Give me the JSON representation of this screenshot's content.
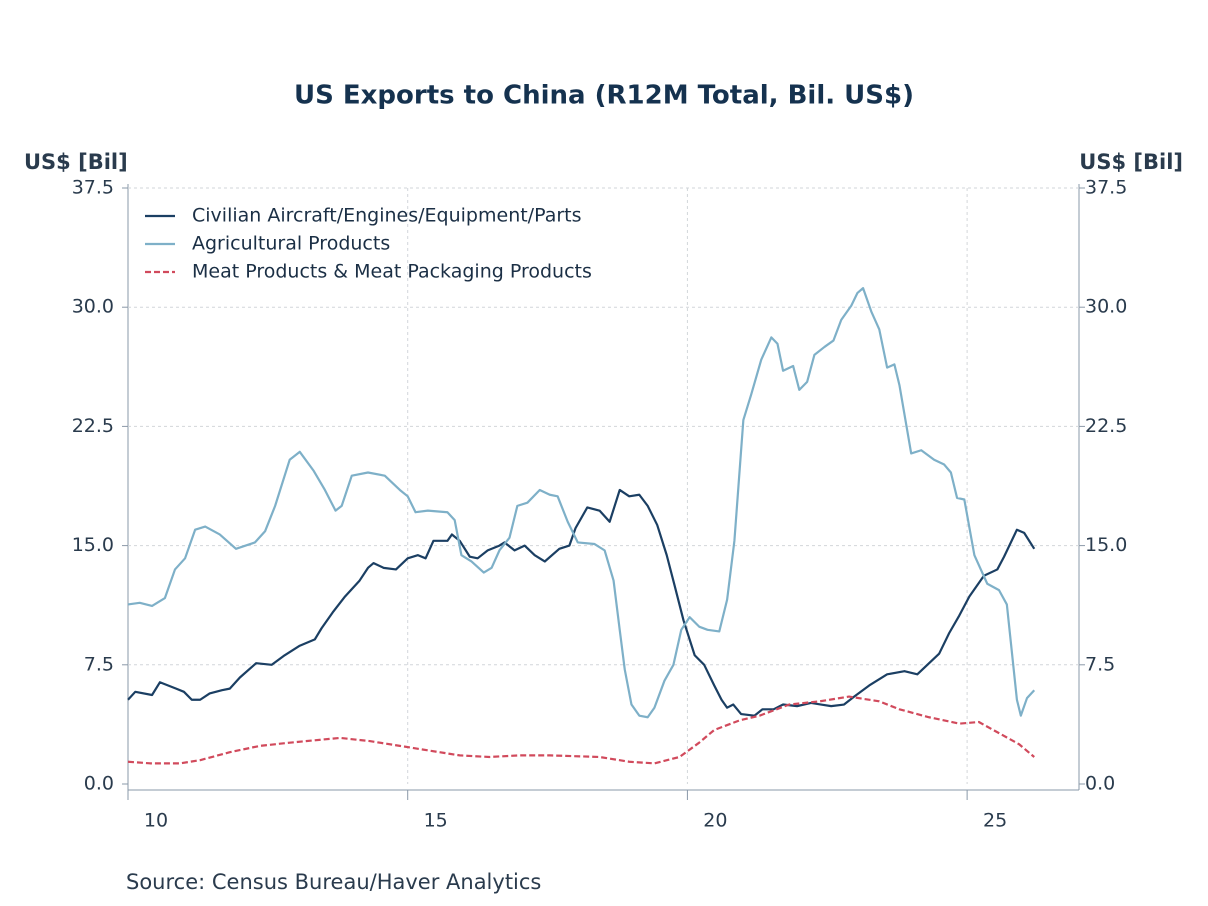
{
  "chart_data": {
    "type": "line",
    "title": "US Exports to China (R12M Total, Bil. US$)",
    "y_label": "US$ [Bil]",
    "y2_label": "US$ [Bil]",
    "source": "Source:  Census Bureau/Haver Analytics",
    "xlim": [
      2010,
      2027
    ],
    "xticks": [
      {
        "value": 2010,
        "label": "10"
      },
      {
        "value": 2015,
        "label": "15"
      },
      {
        "value": 2020,
        "label": "20"
      },
      {
        "value": 2025,
        "label": "25"
      }
    ],
    "ylim": [
      0,
      37.5
    ],
    "yticks": [
      {
        "value": 0,
        "label": "0.0"
      },
      7.5,
      {
        "value": 15,
        "label": "15.0"
      },
      22.5,
      {
        "value": 30,
        "label": "30.0"
      },
      37.5
    ],
    "y2lim": [
      0,
      37.5
    ],
    "y2ticks": [
      {
        "value": 0,
        "label": "0.0"
      },
      7.5,
      {
        "value": 15,
        "label": "15.0"
      },
      22.5,
      {
        "value": 30,
        "label": "30.0"
      },
      37.5
    ],
    "grid": true,
    "legend": "top-left",
    "series": [
      {
        "name": "Civilian Aircraft/Engines/Equipment/Parts",
        "color": "#1b3f63",
        "dash": false,
        "x": [
          2010.0,
          2010.13,
          2010.43,
          2010.57,
          2010.86,
          2011.0,
          2011.14,
          2011.29,
          2011.46,
          2011.68,
          2011.82,
          2012.0,
          2012.29,
          2012.57,
          2012.8,
          2013.07,
          2013.34,
          2013.46,
          2013.66,
          2013.88,
          2014.14,
          2014.29,
          2014.39,
          2014.57,
          2014.79,
          2015.0,
          2015.18,
          2015.32,
          2015.46,
          2015.71,
          2015.79,
          2015.93,
          2016.11,
          2016.25,
          2016.43,
          2016.64,
          2016.73,
          2016.91,
          2017.09,
          2017.27,
          2017.45,
          2017.71,
          2017.89,
          2018.0,
          2018.21,
          2018.43,
          2018.61,
          2018.79,
          2018.96,
          2019.14,
          2019.29,
          2019.46,
          2019.63,
          2019.77,
          2019.93,
          2020.13,
          2020.3,
          2020.48,
          2020.61,
          2020.71,
          2020.82,
          2020.96,
          2021.2,
          2021.34,
          2021.54,
          2021.71,
          2021.96,
          2022.21,
          2022.39,
          2022.57,
          2022.8,
          2022.98,
          2023.25,
          2023.57,
          2023.88,
          2024.11,
          2024.32,
          2024.5,
          2024.68,
          2024.86,
          2025.04,
          2025.3,
          2025.54,
          2025.66,
          2025.89,
          2026.02,
          2026.2
        ],
        "values": [
          5.3,
          5.8,
          5.6,
          6.4,
          6.0,
          5.8,
          5.3,
          5.3,
          5.7,
          5.9,
          6.0,
          6.7,
          7.6,
          7.5,
          8.1,
          8.7,
          9.1,
          9.8,
          10.8,
          11.8,
          12.8,
          13.6,
          13.9,
          13.6,
          13.5,
          14.2,
          14.4,
          14.2,
          15.3,
          15.3,
          15.7,
          15.3,
          14.3,
          14.2,
          14.7,
          15.0,
          15.2,
          14.7,
          15.0,
          14.4,
          14.0,
          14.8,
          15.0,
          16.1,
          17.4,
          17.2,
          16.5,
          18.5,
          18.1,
          18.2,
          17.5,
          16.3,
          14.4,
          12.5,
          10.3,
          8.1,
          7.5,
          6.2,
          5.3,
          4.8,
          5.0,
          4.4,
          4.3,
          4.7,
          4.7,
          5.0,
          4.9,
          5.1,
          5.0,
          4.9,
          5.0,
          5.5,
          6.2,
          6.9,
          7.1,
          6.9,
          7.6,
          8.2,
          9.5,
          10.6,
          11.8,
          13.1,
          13.5,
          14.3,
          16.0,
          15.8,
          14.8
        ]
      },
      {
        "name": "Agricultural Products",
        "color": "#7eb0c8",
        "dash": false,
        "x": [
          2010.0,
          2010.21,
          2010.43,
          2010.66,
          2010.84,
          2011.02,
          2011.2,
          2011.38,
          2011.64,
          2011.93,
          2012.27,
          2012.45,
          2012.63,
          2012.89,
          2013.07,
          2013.32,
          2013.52,
          2013.71,
          2013.82,
          2014.0,
          2014.29,
          2014.59,
          2014.86,
          2015.0,
          2015.14,
          2015.36,
          2015.71,
          2015.84,
          2015.96,
          2016.14,
          2016.36,
          2016.5,
          2016.64,
          2016.82,
          2016.96,
          2017.14,
          2017.36,
          2017.54,
          2017.68,
          2017.86,
          2018.04,
          2018.34,
          2018.52,
          2018.68,
          2018.79,
          2018.88,
          2019.0,
          2019.14,
          2019.29,
          2019.41,
          2019.59,
          2019.75,
          2019.89,
          2020.04,
          2020.21,
          2020.36,
          2020.57,
          2020.71,
          2020.84,
          2021.0,
          2021.14,
          2021.32,
          2021.5,
          2021.61,
          2021.71,
          2021.89,
          2022.0,
          2022.14,
          2022.27,
          2022.45,
          2022.61,
          2022.75,
          2022.93,
          2023.04,
          2023.14,
          2023.29,
          2023.43,
          2023.57,
          2023.7,
          2023.79,
          2024.0,
          2024.18,
          2024.41,
          2024.59,
          2024.71,
          2024.82,
          2024.95,
          2025.13,
          2025.36,
          2025.57,
          2025.71,
          2025.89,
          2025.96,
          2026.07,
          2026.2
        ],
        "values": [
          11.3,
          11.4,
          11.2,
          11.7,
          13.5,
          14.2,
          16.0,
          16.2,
          15.7,
          14.8,
          15.2,
          15.9,
          17.5,
          20.4,
          20.9,
          19.7,
          18.5,
          17.2,
          17.5,
          19.4,
          19.6,
          19.4,
          18.5,
          18.1,
          17.1,
          17.2,
          17.1,
          16.6,
          14.4,
          14.0,
          13.3,
          13.6,
          14.7,
          15.5,
          17.5,
          17.7,
          18.5,
          18.2,
          18.1,
          16.5,
          15.2,
          15.1,
          14.7,
          12.8,
          9.7,
          7.2,
          5.0,
          4.3,
          4.2,
          4.8,
          6.5,
          7.5,
          9.7,
          10.5,
          9.9,
          9.7,
          9.6,
          11.6,
          15.3,
          22.9,
          24.5,
          26.7,
          28.1,
          27.7,
          26.0,
          26.3,
          24.8,
          25.3,
          27.0,
          27.5,
          27.9,
          29.2,
          30.1,
          30.9,
          31.2,
          29.7,
          28.6,
          26.2,
          26.4,
          25.1,
          20.8,
          21.0,
          20.4,
          20.1,
          19.6,
          18.0,
          17.9,
          14.4,
          12.6,
          12.2,
          11.3,
          5.3,
          4.3,
          5.4,
          5.9
        ]
      },
      {
        "name": "Meat Products & Meat Packaging Products",
        "color": "#d14a5c",
        "dash": true,
        "x": [
          2010.0,
          2010.39,
          2010.93,
          2011.29,
          2011.82,
          2012.36,
          2012.89,
          2013.79,
          2014.32,
          2014.86,
          2015.39,
          2015.93,
          2016.46,
          2017.0,
          2017.54,
          2018.43,
          2018.96,
          2019.41,
          2019.86,
          2020.21,
          2020.48,
          2020.93,
          2021.29,
          2021.82,
          2022.36,
          2022.89,
          2023.43,
          2023.79,
          2024.32,
          2024.86,
          2025.21,
          2025.57,
          2025.93,
          2026.2
        ],
        "values": [
          1.4,
          1.3,
          1.3,
          1.5,
          2.0,
          2.4,
          2.6,
          2.9,
          2.7,
          2.4,
          2.1,
          1.8,
          1.7,
          1.8,
          1.8,
          1.7,
          1.4,
          1.3,
          1.7,
          2.6,
          3.4,
          4.0,
          4.3,
          5.0,
          5.2,
          5.5,
          5.2,
          4.7,
          4.2,
          3.8,
          3.9,
          3.2,
          2.5,
          1.7
        ]
      }
    ]
  }
}
